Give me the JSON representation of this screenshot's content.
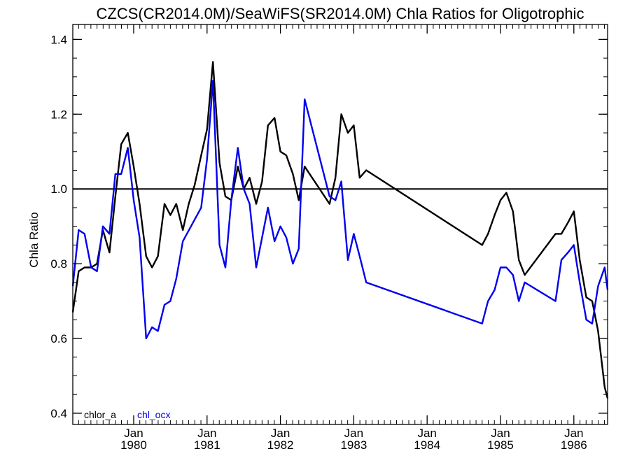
{
  "chart_data": {
    "type": "line",
    "title": "CZCS(CR2014.0M)/SeaWiFS(SR2014.0M)  Chla Ratios for Oligotrophic",
    "ylabel": "Chla Ratio",
    "xlabel": "",
    "ylim": [
      0.37,
      1.44
    ],
    "xlim": [
      1979.17,
      1986.46
    ],
    "yticks": [
      {
        "value": 0.4,
        "label": "0.4"
      },
      {
        "value": 0.6,
        "label": "0.6"
      },
      {
        "value": 0.8,
        "label": "0.8"
      },
      {
        "value": 1.0,
        "label": "1.0"
      },
      {
        "value": 1.2,
        "label": "1.2"
      },
      {
        "value": 1.4,
        "label": "1.4"
      }
    ],
    "xticks": [
      {
        "value": 1980.0,
        "month": "Jan",
        "year": "1980"
      },
      {
        "value": 1981.0,
        "month": "Jan",
        "year": "1981"
      },
      {
        "value": 1982.0,
        "month": "Jan",
        "year": "1982"
      },
      {
        "value": 1983.0,
        "month": "Jan",
        "year": "1983"
      },
      {
        "value": 1984.0,
        "month": "Jan",
        "year": "1984"
      },
      {
        "value": 1985.0,
        "month": "Jan",
        "year": "1985"
      },
      {
        "value": 1986.0,
        "month": "Jan",
        "year": "1986"
      }
    ],
    "reference_line": 1.0,
    "grid": false,
    "legend_position": "bottom-left",
    "series": [
      {
        "name": "chlor_a",
        "color": "#000000",
        "points": [
          [
            1979.17,
            0.67
          ],
          [
            1979.25,
            0.78
          ],
          [
            1979.33,
            0.79
          ],
          [
            1979.42,
            0.79
          ],
          [
            1979.5,
            0.8
          ],
          [
            1979.58,
            0.89
          ],
          [
            1979.67,
            0.83
          ],
          [
            1979.75,
            0.98
          ],
          [
            1979.83,
            1.12
          ],
          [
            1979.92,
            1.15
          ],
          [
            1980.0,
            1.06
          ],
          [
            1980.08,
            0.96
          ],
          [
            1980.17,
            0.82
          ],
          [
            1980.25,
            0.79
          ],
          [
            1980.33,
            0.82
          ],
          [
            1980.42,
            0.96
          ],
          [
            1980.5,
            0.93
          ],
          [
            1980.58,
            0.96
          ],
          [
            1980.67,
            0.89
          ],
          [
            1980.75,
            0.96
          ],
          [
            1980.83,
            1.01
          ],
          [
            1980.92,
            1.09
          ],
          [
            1981.0,
            1.16
          ],
          [
            1981.08,
            1.34
          ],
          [
            1981.17,
            1.07
          ],
          [
            1981.25,
            0.98
          ],
          [
            1981.33,
            0.97
          ],
          [
            1981.42,
            1.06
          ],
          [
            1981.5,
            1.0
          ],
          [
            1981.58,
            1.03
          ],
          [
            1981.67,
            0.96
          ],
          [
            1981.75,
            1.02
          ],
          [
            1981.83,
            1.17
          ],
          [
            1981.92,
            1.19
          ],
          [
            1982.0,
            1.1
          ],
          [
            1982.08,
            1.09
          ],
          [
            1982.17,
            1.04
          ],
          [
            1982.25,
            0.97
          ],
          [
            1982.33,
            1.06
          ],
          [
            1982.67,
            0.96
          ],
          [
            1982.75,
            1.03
          ],
          [
            1982.83,
            1.2
          ],
          [
            1982.92,
            1.15
          ],
          [
            1983.0,
            1.17
          ],
          [
            1983.08,
            1.03
          ],
          [
            1983.17,
            1.05
          ],
          [
            1984.75,
            0.85
          ],
          [
            1984.83,
            0.88
          ],
          [
            1984.92,
            0.93
          ],
          [
            1985.0,
            0.97
          ],
          [
            1985.08,
            0.99
          ],
          [
            1985.17,
            0.94
          ],
          [
            1985.25,
            0.81
          ],
          [
            1985.33,
            0.77
          ],
          [
            1985.75,
            0.88
          ],
          [
            1985.83,
            0.88
          ],
          [
            1985.92,
            0.91
          ],
          [
            1986.0,
            0.94
          ],
          [
            1986.08,
            0.81
          ],
          [
            1986.17,
            0.71
          ],
          [
            1986.25,
            0.7
          ],
          [
            1986.33,
            0.62
          ],
          [
            1986.42,
            0.47
          ],
          [
            1986.46,
            0.44
          ]
        ]
      },
      {
        "name": "chl_ocx",
        "color": "#0000ee",
        "points": [
          [
            1979.17,
            0.74
          ],
          [
            1979.25,
            0.89
          ],
          [
            1979.33,
            0.88
          ],
          [
            1979.42,
            0.79
          ],
          [
            1979.5,
            0.78
          ],
          [
            1979.58,
            0.9
          ],
          [
            1979.67,
            0.88
          ],
          [
            1979.75,
            1.04
          ],
          [
            1979.83,
            1.04
          ],
          [
            1979.92,
            1.11
          ],
          [
            1980.0,
            0.97
          ],
          [
            1980.08,
            0.87
          ],
          [
            1980.17,
            0.6
          ],
          [
            1980.25,
            0.63
          ],
          [
            1980.33,
            0.62
          ],
          [
            1980.42,
            0.69
          ],
          [
            1980.5,
            0.7
          ],
          [
            1980.58,
            0.76
          ],
          [
            1980.67,
            0.86
          ],
          [
            1980.92,
            0.95
          ],
          [
            1981.0,
            1.08
          ],
          [
            1981.08,
            1.29
          ],
          [
            1981.17,
            0.85
          ],
          [
            1981.25,
            0.79
          ],
          [
            1981.33,
            0.97
          ],
          [
            1981.42,
            1.11
          ],
          [
            1981.5,
            1.0
          ],
          [
            1981.58,
            0.96
          ],
          [
            1981.67,
            0.79
          ],
          [
            1981.75,
            0.87
          ],
          [
            1981.83,
            0.95
          ],
          [
            1981.92,
            0.86
          ],
          [
            1982.0,
            0.9
          ],
          [
            1982.08,
            0.87
          ],
          [
            1982.17,
            0.8
          ],
          [
            1982.25,
            0.84
          ],
          [
            1982.33,
            1.24
          ],
          [
            1982.67,
            0.98
          ],
          [
            1982.75,
            0.97
          ],
          [
            1982.83,
            1.02
          ],
          [
            1982.92,
            0.81
          ],
          [
            1983.0,
            0.88
          ],
          [
            1983.08,
            0.82
          ],
          [
            1983.17,
            0.75
          ],
          [
            1984.75,
            0.64
          ],
          [
            1984.83,
            0.7
          ],
          [
            1984.92,
            0.73
          ],
          [
            1985.0,
            0.79
          ],
          [
            1985.08,
            0.79
          ],
          [
            1985.17,
            0.77
          ],
          [
            1985.25,
            0.7
          ],
          [
            1985.33,
            0.75
          ],
          [
            1985.75,
            0.7
          ],
          [
            1985.83,
            0.81
          ],
          [
            1985.92,
            0.83
          ],
          [
            1986.0,
            0.85
          ],
          [
            1986.08,
            0.75
          ],
          [
            1986.17,
            0.65
          ],
          [
            1986.25,
            0.64
          ],
          [
            1986.33,
            0.74
          ],
          [
            1986.42,
            0.79
          ],
          [
            1986.46,
            0.73
          ]
        ]
      }
    ]
  }
}
